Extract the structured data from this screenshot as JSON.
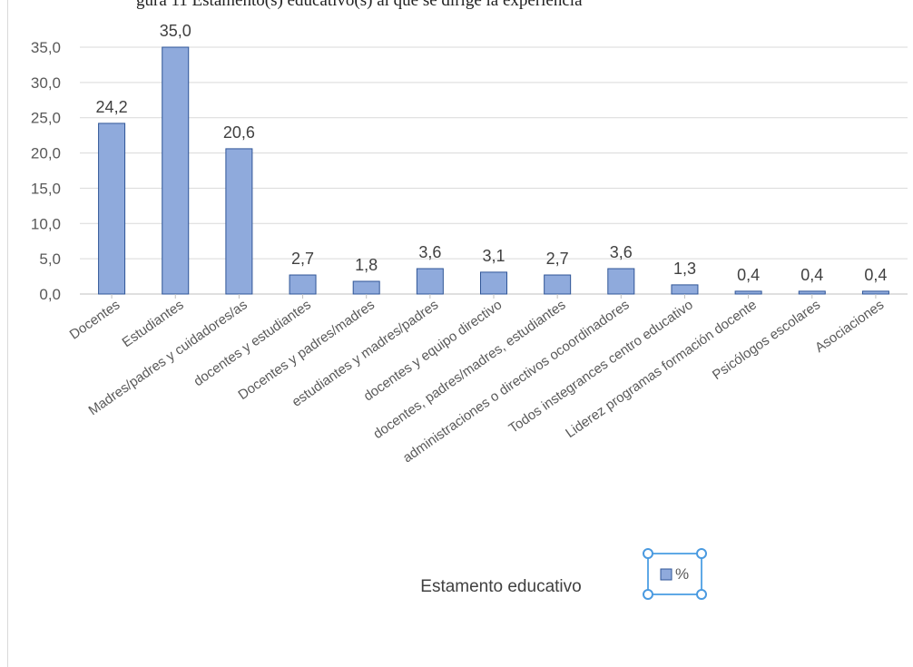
{
  "chart_data": {
    "type": "bar",
    "title": "",
    "top_text": "gura 11 Estamento(s) educativo(s) al que se dirige la experiencia",
    "xlabel": "Estamento educativo",
    "ylabel": "",
    "ylim": [
      0,
      35
    ],
    "yticks": [
      "0,0",
      "5,0",
      "10,0",
      "15,0",
      "20,0",
      "25,0",
      "30,0",
      "35,0"
    ],
    "grid": true,
    "legend_position": "bottom-right",
    "bar_color": "#8faadc",
    "bar_border": "#2f5597",
    "categories": [
      "Docentes",
      "Estudiantes",
      "Madres/padres y cuidadores/as",
      "docentes y estudiantes",
      "Docentes y padres/madres",
      "estudiantes y madres/padres",
      "docentes y equipo directivo",
      "docentes, padres/madres, estudiantes",
      "administraciones o directivos ocoordinadores",
      "Todos instegrances centro educativo",
      "Liderez programas formación docente",
      "Psicólogos escolares",
      "Asociaciones"
    ],
    "series": [
      {
        "name": "%",
        "values": [
          24.2,
          35.0,
          20.6,
          2.7,
          1.8,
          3.6,
          3.1,
          2.7,
          3.6,
          1.3,
          0.4,
          0.4,
          0.4
        ],
        "labels": [
          "24,2",
          "35,0",
          "20,6",
          "2,7",
          "1,8",
          "3,6",
          "3,1",
          "2,7",
          "3,6",
          "1,3",
          "0,4",
          "0,4",
          "0,4"
        ]
      }
    ]
  }
}
